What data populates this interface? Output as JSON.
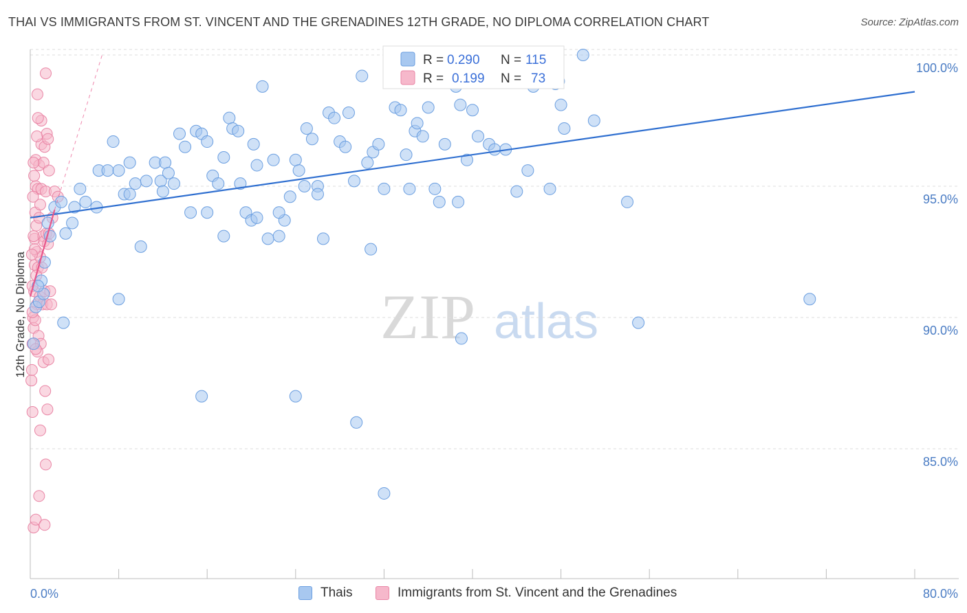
{
  "title": "THAI VS IMMIGRANTS FROM ST. VINCENT AND THE GRENADINES 12TH GRADE, NO DIPLOMA CORRELATION CHART",
  "source": "Source: ZipAtlas.com",
  "watermark": {
    "zip": "ZIP",
    "atlas": "atlas"
  },
  "colors": {
    "blue_fill": "#a8c8f0",
    "blue_stroke": "#6a9ee0",
    "blue_line": "#2f6fd0",
    "pink_fill": "#f6b8cb",
    "pink_stroke": "#e985a5",
    "pink_line": "#e8558a",
    "tick_text": "#4a7cc4",
    "grid": "#dddddd"
  },
  "legend": {
    "rows": [
      {
        "r_label": "R =",
        "r_value": "0.290",
        "n_label": "N =",
        "n_value": "115"
      },
      {
        "r_label": "R =",
        "r_value": "0.199",
        "n_label": "N =",
        "n_value": "73"
      }
    ]
  },
  "bottom_legend": [
    "Thais",
    "Immigrants from St. Vincent and the Grenadines"
  ],
  "chart_data": {
    "type": "scatter",
    "title": "THAI VS IMMIGRANTS FROM ST. VINCENT AND THE GRENADINES 12TH GRADE, NO DIPLOMA CORRELATION CHART",
    "xlabel": "",
    "ylabel": "12th Grade, No Diploma",
    "xlim": [
      0,
      80
    ],
    "ylim": [
      80.5,
      100.5
    ],
    "x_tick_labels": [
      "0.0%",
      "80.0%"
    ],
    "y_ticks": [
      85,
      90,
      95,
      100
    ],
    "y_tick_labels": [
      "85.0%",
      "90.0%",
      "95.0%",
      "100.0%"
    ],
    "grid": true,
    "legend_position": "top-center",
    "series": [
      {
        "name": "Thais",
        "color": "#a8c8f0",
        "trend": {
          "x": [
            0,
            80
          ],
          "y": [
            93.8,
            98.6
          ]
        },
        "points": [
          [
            0.3,
            89.0
          ],
          [
            0.5,
            90.4
          ],
          [
            0.8,
            90.6
          ],
          [
            1.0,
            91.4
          ],
          [
            1.3,
            92.1
          ],
          [
            1.6,
            93.6
          ],
          [
            1.8,
            93.1
          ],
          [
            2.2,
            94.2
          ],
          [
            2.8,
            94.4
          ],
          [
            3.0,
            89.8
          ],
          [
            3.2,
            93.2
          ],
          [
            3.8,
            93.6
          ],
          [
            4.0,
            94.2
          ],
          [
            4.5,
            94.9
          ],
          [
            5.0,
            94.4
          ],
          [
            6.0,
            94.2
          ],
          [
            6.2,
            95.6
          ],
          [
            7.0,
            95.6
          ],
          [
            7.5,
            96.7
          ],
          [
            8.0,
            95.6
          ],
          [
            8.5,
            94.7
          ],
          [
            9.0,
            95.9
          ],
          [
            9.5,
            95.1
          ],
          [
            10.0,
            92.7
          ],
          [
            10.5,
            95.2
          ],
          [
            11.3,
            95.9
          ],
          [
            11.8,
            95.2
          ],
          [
            12.2,
            95.9
          ],
          [
            12.5,
            95.5
          ],
          [
            13.0,
            95.1
          ],
          [
            13.5,
            97.0
          ],
          [
            14.0,
            96.5
          ],
          [
            14.5,
            94.0
          ],
          [
            15.0,
            97.1
          ],
          [
            15.5,
            97.0
          ],
          [
            16.0,
            94.0
          ],
          [
            16.5,
            95.4
          ],
          [
            17.0,
            95.1
          ],
          [
            17.5,
            96.1
          ],
          [
            18.0,
            97.6
          ],
          [
            18.3,
            97.2
          ],
          [
            18.8,
            97.1
          ],
          [
            19.0,
            95.1
          ],
          [
            19.5,
            94.0
          ],
          [
            20.0,
            93.7
          ],
          [
            20.2,
            96.6
          ],
          [
            20.5,
            95.8
          ],
          [
            21.0,
            98.8
          ],
          [
            21.5,
            93.0
          ],
          [
            22.0,
            96.0
          ],
          [
            22.5,
            93.1
          ],
          [
            23.0,
            93.7
          ],
          [
            23.5,
            94.6
          ],
          [
            24.0,
            96.0
          ],
          [
            24.3,
            95.6
          ],
          [
            24.8,
            95.0
          ],
          [
            25.0,
            97.2
          ],
          [
            25.5,
            96.8
          ],
          [
            26.0,
            95.0
          ],
          [
            26.5,
            93.0
          ],
          [
            27.0,
            97.8
          ],
          [
            27.5,
            97.6
          ],
          [
            28.0,
            96.7
          ],
          [
            28.5,
            96.5
          ],
          [
            28.8,
            97.8
          ],
          [
            29.3,
            95.2
          ],
          [
            30.0,
            99.2
          ],
          [
            30.8,
            92.6
          ],
          [
            31.0,
            96.3
          ],
          [
            31.5,
            96.6
          ],
          [
            32.0,
            94.9
          ],
          [
            33.0,
            98.0
          ],
          [
            33.5,
            97.9
          ],
          [
            34.3,
            94.9
          ],
          [
            34.8,
            97.1
          ],
          [
            35.0,
            97.4
          ],
          [
            35.5,
            96.9
          ],
          [
            36.6,
            94.9
          ],
          [
            37.0,
            94.4
          ],
          [
            37.5,
            96.6
          ],
          [
            38.2,
            100.0
          ],
          [
            38.5,
            98.8
          ],
          [
            38.7,
            94.4
          ],
          [
            38.9,
            98.1
          ],
          [
            39.0,
            89.2
          ],
          [
            39.5,
            96.0
          ],
          [
            40.0,
            97.9
          ],
          [
            40.5,
            96.9
          ],
          [
            41.0,
            99.0
          ],
          [
            41.5,
            96.6
          ],
          [
            42.0,
            96.4
          ],
          [
            43.0,
            96.4
          ],
          [
            44.0,
            94.8
          ],
          [
            44.8,
            100.0
          ],
          [
            45.5,
            98.8
          ],
          [
            47.0,
            94.9
          ],
          [
            47.5,
            98.9
          ],
          [
            47.8,
            99.0
          ],
          [
            48.0,
            98.1
          ],
          [
            48.3,
            97.2
          ],
          [
            50.0,
            100.0
          ],
          [
            51.0,
            97.5
          ],
          [
            54.0,
            94.4
          ],
          [
            55.0,
            89.8
          ],
          [
            70.5,
            90.7
          ],
          [
            8.0,
            90.7
          ],
          [
            15.5,
            87.0
          ],
          [
            24.0,
            87.0
          ],
          [
            29.5,
            86.0
          ],
          [
            32.0,
            83.3
          ],
          [
            20.5,
            93.8
          ],
          [
            22.5,
            94.0
          ],
          [
            36.0,
            98.0
          ],
          [
            26.0,
            94.7
          ],
          [
            34.0,
            96.2
          ],
          [
            1.2,
            90.9
          ],
          [
            0.7,
            91.2
          ],
          [
            17.5,
            93.1
          ],
          [
            45.0,
            95.6
          ],
          [
            12.0,
            94.8
          ],
          [
            30.5,
            95.9
          ],
          [
            9.0,
            94.7
          ],
          [
            16.0,
            96.7
          ]
        ]
      },
      {
        "name": "Immigrants from St. Vincent and the Grenadines",
        "color": "#f6b8cb",
        "trend": {
          "x": [
            0,
            2.2
          ],
          "y": [
            90.8,
            94.1
          ]
        },
        "trend_extension": {
          "x": [
            2.2,
            6.5
          ],
          "y": [
            94.1,
            100.0
          ]
        },
        "points": [
          [
            0.1,
            87.6
          ],
          [
            0.15,
            88.0
          ],
          [
            0.2,
            89.0
          ],
          [
            0.2,
            86.4
          ],
          [
            0.25,
            90.0
          ],
          [
            0.3,
            89.6
          ],
          [
            0.35,
            91.0
          ],
          [
            0.4,
            92.0
          ],
          [
            0.4,
            93.0
          ],
          [
            0.45,
            94.0
          ],
          [
            0.5,
            95.0
          ],
          [
            0.5,
            96.0
          ],
          [
            0.55,
            93.5
          ],
          [
            0.6,
            92.5
          ],
          [
            0.6,
            90.5
          ],
          [
            0.65,
            98.5
          ],
          [
            0.7,
            94.9
          ],
          [
            0.7,
            91.9
          ],
          [
            0.75,
            89.3
          ],
          [
            0.8,
            95.8
          ],
          [
            0.8,
            93.8
          ],
          [
            0.85,
            90.8
          ],
          [
            0.9,
            94.3
          ],
          [
            0.9,
            92.3
          ],
          [
            0.95,
            89.0
          ],
          [
            1.0,
            97.5
          ],
          [
            1.0,
            96.6
          ],
          [
            1.0,
            94.9
          ],
          [
            1.05,
            91.9
          ],
          [
            1.1,
            90.5
          ],
          [
            1.15,
            93.1
          ],
          [
            1.2,
            88.3
          ],
          [
            1.2,
            95.9
          ],
          [
            1.25,
            92.9
          ],
          [
            1.3,
            91.0
          ],
          [
            1.3,
            96.5
          ],
          [
            1.35,
            87.2
          ],
          [
            1.4,
            99.3
          ],
          [
            1.4,
            94.8
          ],
          [
            1.45,
            93.2
          ],
          [
            1.5,
            97.0
          ],
          [
            1.5,
            90.5
          ],
          [
            1.55,
            86.5
          ],
          [
            1.6,
            96.8
          ],
          [
            1.6,
            92.8
          ],
          [
            1.65,
            88.4
          ],
          [
            1.7,
            95.6
          ],
          [
            1.7,
            93.2
          ],
          [
            1.8,
            91.0
          ],
          [
            1.9,
            90.5
          ],
          [
            2.0,
            93.8
          ],
          [
            2.2,
            94.8
          ],
          [
            2.5,
            94.6
          ],
          [
            0.3,
            82.0
          ],
          [
            0.5,
            82.3
          ],
          [
            0.8,
            83.2
          ],
          [
            1.3,
            82.1
          ],
          [
            1.4,
            84.4
          ],
          [
            0.9,
            85.7
          ],
          [
            0.2,
            91.2
          ],
          [
            0.3,
            93.1
          ],
          [
            0.4,
            92.6
          ],
          [
            0.6,
            96.9
          ],
          [
            0.7,
            97.6
          ],
          [
            0.25,
            94.6
          ],
          [
            0.35,
            95.4
          ],
          [
            0.55,
            91.6
          ],
          [
            0.45,
            89.9
          ],
          [
            0.65,
            88.7
          ],
          [
            0.15,
            92.4
          ],
          [
            0.2,
            90.2
          ],
          [
            0.3,
            95.9
          ],
          [
            0.5,
            88.8
          ]
        ]
      }
    ]
  }
}
